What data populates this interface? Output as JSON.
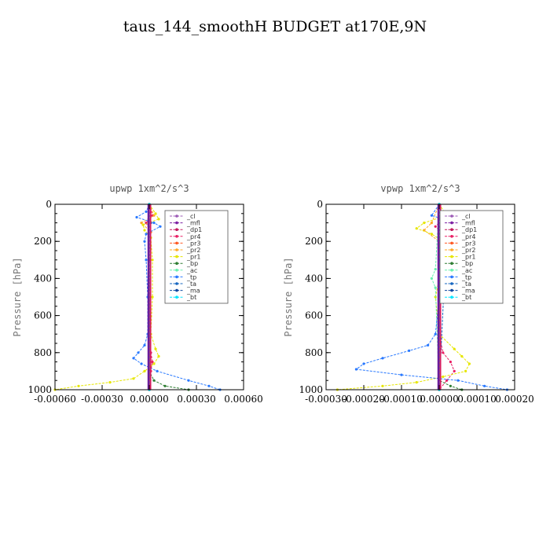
{
  "figure_title": "taus_144_smoothH  BUDGET at170E,9N",
  "chart_data": [
    {
      "type": "line",
      "title": "upwp   1xm^2/s^3",
      "ylabel": "Pressure [hPa]",
      "xlabel": "",
      "xlim": [
        -0.0006,
        0.0006
      ],
      "ylim": [
        1000,
        0
      ],
      "xtick_labels": [
        "-0.00060",
        "-0.00030",
        "0.00000",
        "0.00030",
        "0.00060"
      ],
      "xticks": [
        -0.0006,
        -0.0003,
        0,
        0.0003,
        0.0006
      ],
      "yticks": [
        0,
        200,
        400,
        600,
        800,
        1000
      ],
      "legend_position": "top-right",
      "series": [
        {
          "name": "_cl",
          "color": "#9b59b6",
          "p": [
            0,
            1000
          ],
          "v": [
            0,
            0
          ]
        },
        {
          "name": "_mfl",
          "color": "#7b1fa2",
          "p": [
            0,
            1000
          ],
          "v": [
            0,
            0
          ]
        },
        {
          "name": "_dp1",
          "color": "#c2185b",
          "p": [
            0,
            1000
          ],
          "v": [
            0,
            0
          ]
        },
        {
          "name": "_pr4",
          "color": "#e91e63",
          "p": [
            0,
            60,
            100,
            150,
            300,
            600,
            800,
            850,
            900,
            950,
            1000
          ],
          "v": [
            0,
            2e-05,
            -2e-05,
            1e-05,
            5e-06,
            0,
            1e-05,
            2e-05,
            1e-05,
            5e-06,
            0
          ]
        },
        {
          "name": "_pr3",
          "color": "#ff5722",
          "p": [
            0,
            1000
          ],
          "v": [
            0,
            0
          ]
        },
        {
          "name": "_pr2",
          "color": "#ffa726",
          "p": [
            0,
            60,
            100,
            150,
            800,
            1000
          ],
          "v": [
            0,
            3e-05,
            -5e-05,
            1e-05,
            0,
            0
          ]
        },
        {
          "name": "_pr1",
          "color": "#e6e600",
          "p": [
            0,
            50,
            80,
            110,
            140,
            180,
            300,
            500,
            700,
            780,
            820,
            860,
            900,
            940,
            960,
            980,
            1000
          ],
          "v": [
            0,
            4e-05,
            6e-05,
            -4e-05,
            -3e-05,
            1e-05,
            2e-05,
            2e-05,
            1e-05,
            4e-05,
            6e-05,
            3e-05,
            -3e-05,
            -0.0001,
            -0.00025,
            -0.00045,
            -0.0006
          ]
        },
        {
          "name": "_bp",
          "color": "#2e7d32",
          "p": [
            0,
            900,
            950,
            980,
            1000
          ],
          "v": [
            0,
            0,
            3e-05,
            0.0001,
            0.00025
          ]
        },
        {
          "name": "_ac",
          "color": "#69f0ae",
          "p": [
            0,
            1000
          ],
          "v": [
            0,
            0
          ]
        },
        {
          "name": "_tp",
          "color": "#2979ff",
          "p": [
            0,
            40,
            70,
            100,
            120,
            160,
            200,
            300,
            500,
            700,
            760,
            800,
            830,
            860,
            900,
            950,
            980,
            1000
          ],
          "v": [
            0,
            -2e-05,
            -8e-05,
            3e-05,
            7e-05,
            -2e-05,
            -3e-05,
            -2e-05,
            -1e-05,
            -1e-05,
            -3e-05,
            -7e-05,
            -0.0001,
            -5e-05,
            5e-05,
            0.00025,
            0.00038,
            0.00045
          ]
        },
        {
          "name": "_ta",
          "color": "#1565c0",
          "p": [
            0,
            100,
            1000
          ],
          "v": [
            0,
            1e-05,
            0
          ]
        },
        {
          "name": "_ma",
          "color": "#0d47a1",
          "p": [
            0,
            1000
          ],
          "v": [
            0,
            0
          ]
        },
        {
          "name": "_bt",
          "color": "#00e5ff",
          "p": [
            0,
            1000
          ],
          "v": [
            0,
            0
          ]
        }
      ]
    },
    {
      "type": "line",
      "title": "vpwp   1xm^2/s^3",
      "ylabel": "Pressure [hPa]",
      "xlabel": "",
      "xlim": [
        -0.0003,
        0.0002
      ],
      "ylim": [
        1000,
        0
      ],
      "xtick_labels": [
        "-0.00030",
        "-0.00020",
        "-0.00010",
        "0.00000",
        "0.00010",
        "0.00020"
      ],
      "xticks": [
        -0.0003,
        -0.0002,
        -0.0001,
        0,
        0.0001,
        0.0002
      ],
      "yticks": [
        0,
        200,
        400,
        600,
        800,
        1000
      ],
      "legend_position": "top-right",
      "series": [
        {
          "name": "_cl",
          "color": "#9b59b6",
          "p": [
            0,
            1000
          ],
          "v": [
            0,
            0
          ]
        },
        {
          "name": "_mfl",
          "color": "#7b1fa2",
          "p": [
            0,
            1000
          ],
          "v": [
            0,
            0
          ]
        },
        {
          "name": "_dp1",
          "color": "#c2185b",
          "p": [
            0,
            1000
          ],
          "v": [
            0,
            0
          ]
        },
        {
          "name": "_pr4",
          "color": "#e91e63",
          "p": [
            0,
            80,
            120,
            160,
            300,
            700,
            800,
            850,
            900,
            950,
            1000
          ],
          "v": [
            0,
            1e-05,
            -1e-05,
            1e-05,
            0,
            0,
            1e-05,
            3e-05,
            4e-05,
            2e-05,
            0
          ]
        },
        {
          "name": "_pr3",
          "color": "#ff5722",
          "p": [
            0,
            1000
          ],
          "v": [
            0,
            0
          ]
        },
        {
          "name": "_pr2",
          "color": "#ffa726",
          "p": [
            0,
            100,
            140,
            200,
            1000
          ],
          "v": [
            0,
            -2e-05,
            -4e-05,
            0,
            0
          ]
        },
        {
          "name": "_pr1",
          "color": "#e6e600",
          "p": [
            0,
            60,
            100,
            130,
            160,
            200,
            300,
            500,
            700,
            780,
            820,
            860,
            900,
            930,
            960,
            980,
            1000
          ],
          "v": [
            0,
            2e-05,
            -4e-05,
            -6e-05,
            -2e-05,
            1e-05,
            1e-05,
            -1e-05,
            0,
            4e-05,
            6e-05,
            8e-05,
            7e-05,
            1e-05,
            -6e-05,
            -0.00015,
            -0.00027
          ]
        },
        {
          "name": "_bp",
          "color": "#2e7d32",
          "p": [
            0,
            950,
            980,
            1000
          ],
          "v": [
            0,
            0,
            3e-05,
            6e-05
          ]
        },
        {
          "name": "_ac",
          "color": "#69f0ae",
          "p": [
            0,
            350,
            400,
            450,
            1000
          ],
          "v": [
            0,
            -1e-05,
            -2e-05,
            -1e-05,
            0
          ]
        },
        {
          "name": "_tp",
          "color": "#2979ff",
          "p": [
            0,
            60,
            100,
            130,
            160,
            200,
            300,
            500,
            700,
            760,
            790,
            830,
            860,
            890,
            920,
            950,
            980,
            1000
          ],
          "v": [
            0,
            -2e-05,
            4e-05,
            8e-05,
            5e-05,
            1e-05,
            0,
            0,
            -1e-05,
            -3e-05,
            -8e-05,
            -0.00015,
            -0.0002,
            -0.00022,
            -0.0001,
            5e-05,
            0.00012,
            0.00018
          ]
        },
        {
          "name": "_ta",
          "color": "#1565c0",
          "p": [
            0,
            130,
            1000
          ],
          "v": [
            0,
            2e-05,
            0
          ]
        },
        {
          "name": "_ma",
          "color": "#0d47a1",
          "p": [
            0,
            1000
          ],
          "v": [
            0,
            0
          ]
        },
        {
          "name": "_bt",
          "color": "#00e5ff",
          "p": [
            0,
            1000
          ],
          "v": [
            0,
            0
          ]
        }
      ]
    }
  ]
}
